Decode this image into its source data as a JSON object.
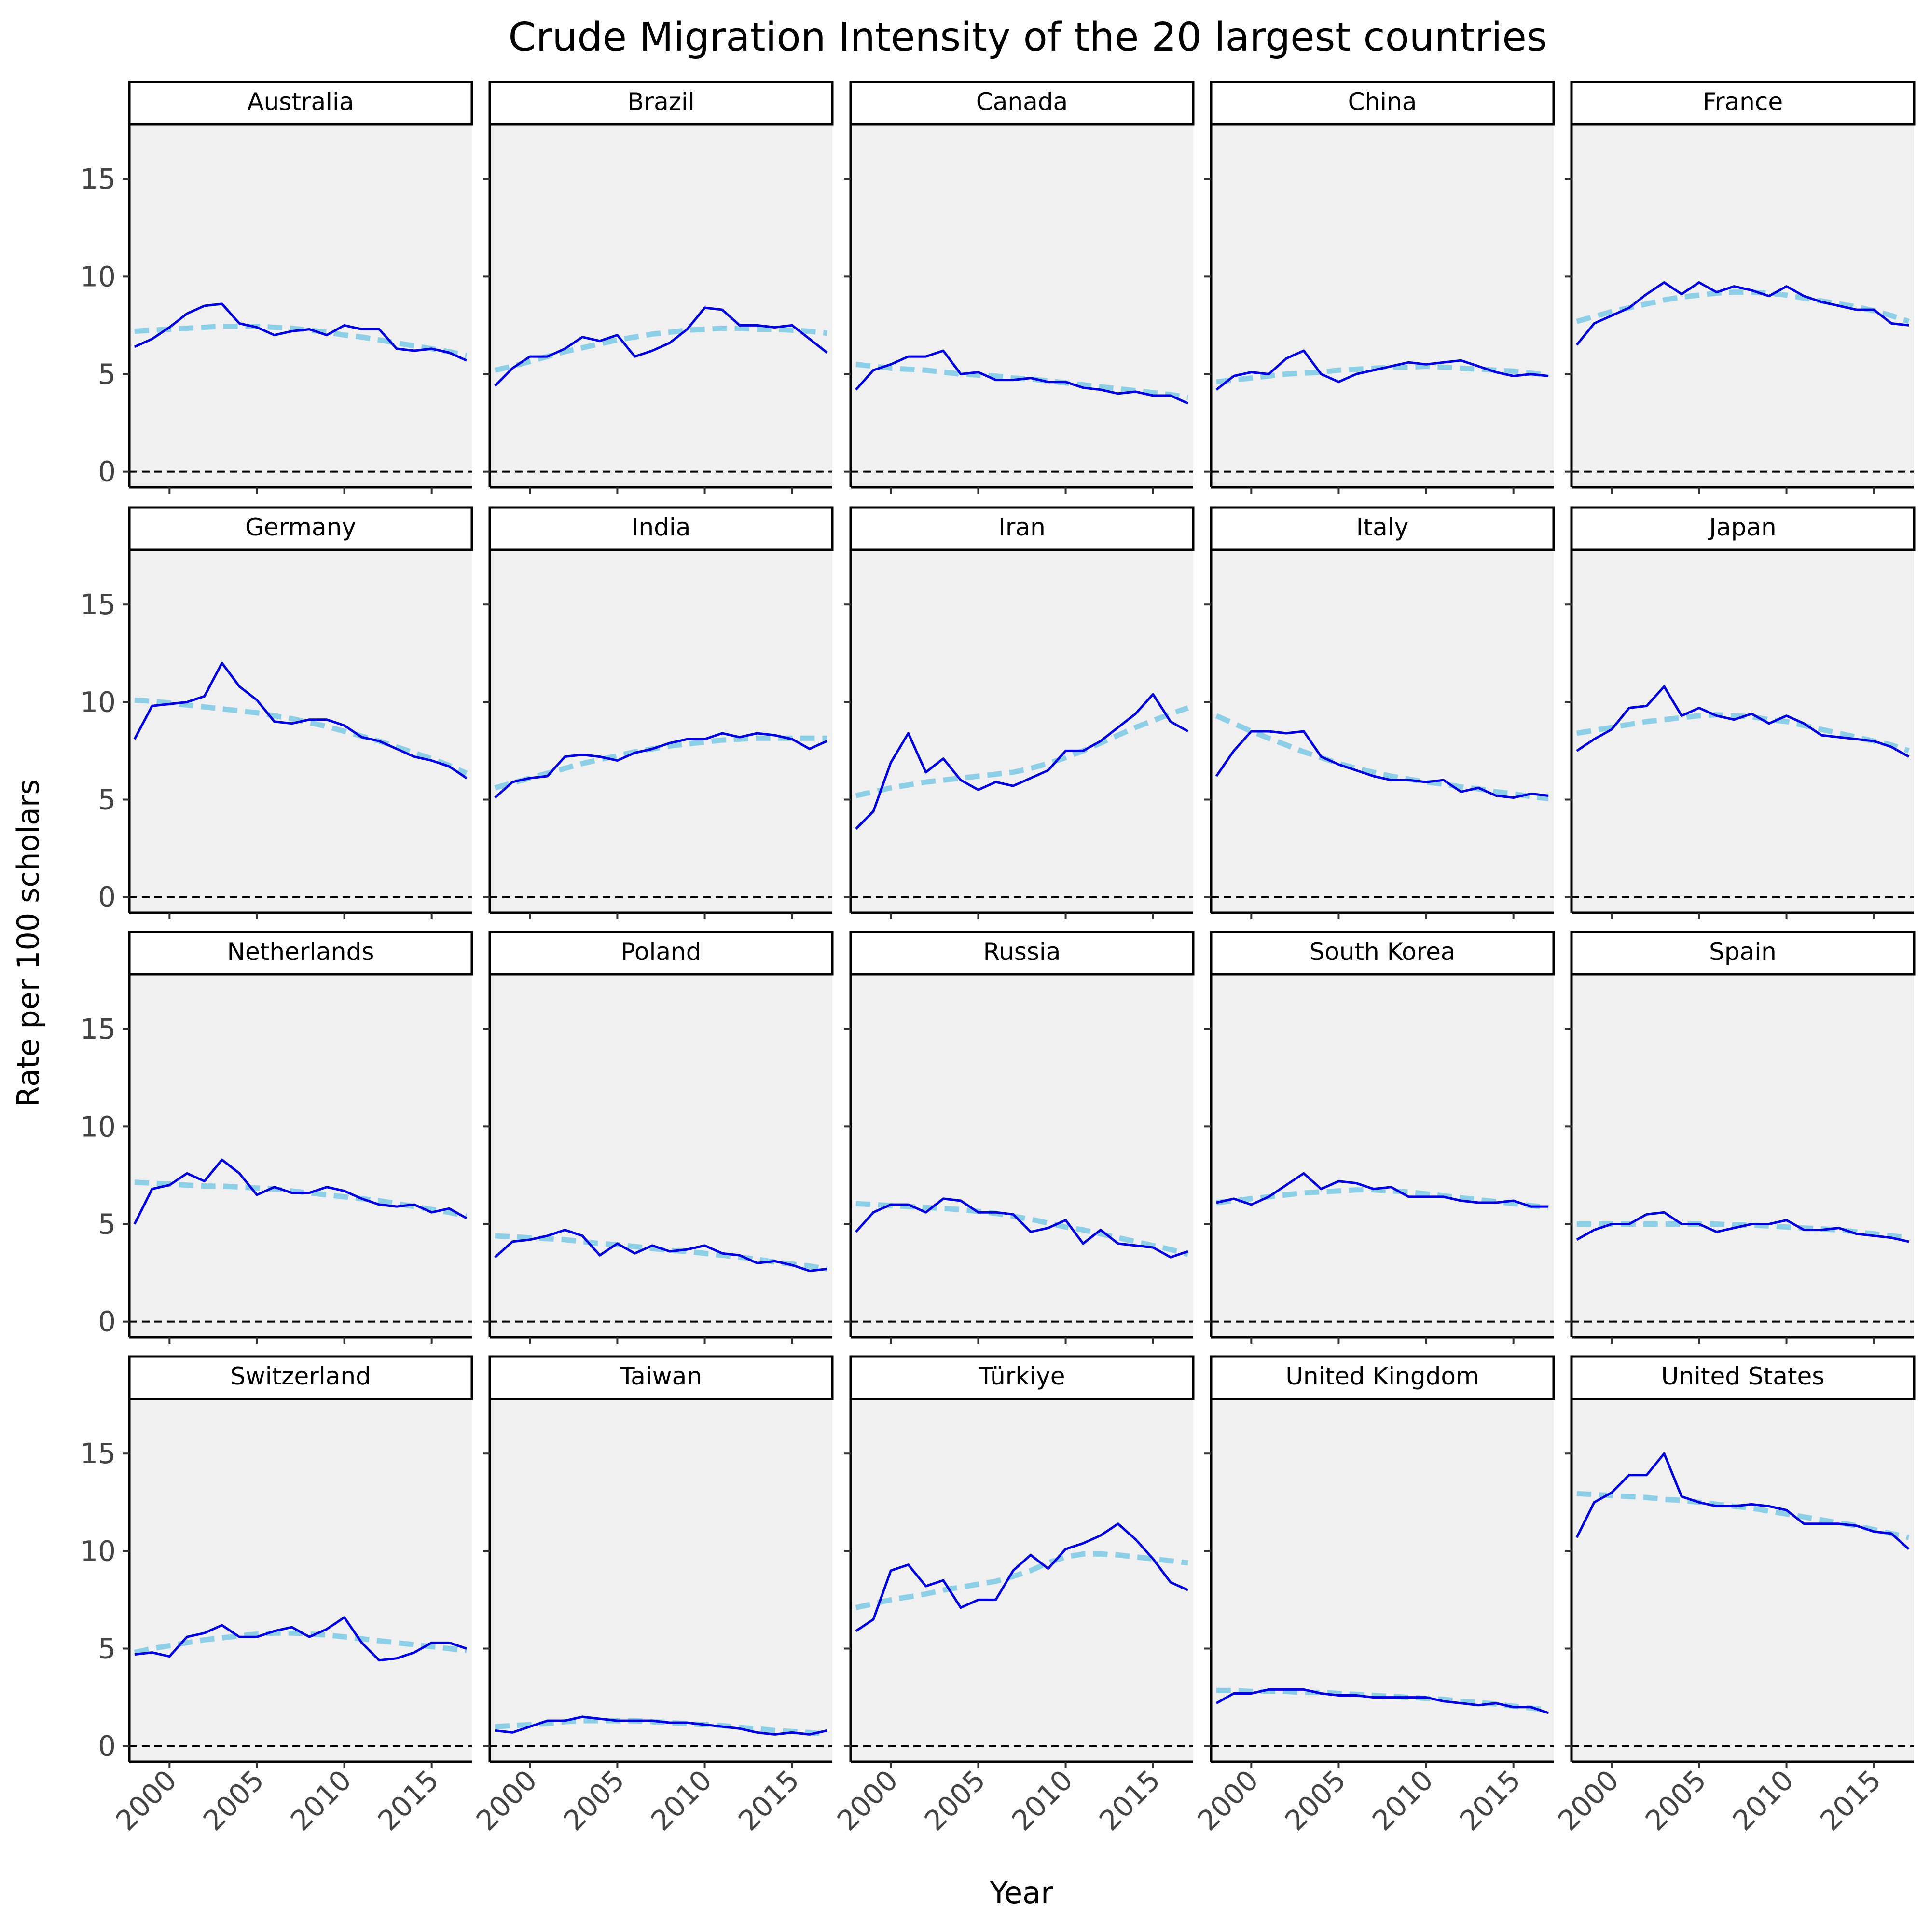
{
  "chart_data": {
    "type": "line",
    "title": "Crude Migration Intensity of the 20 largest countries",
    "xlabel": "Year",
    "ylabel": "Rate per 100 scholars",
    "x": [
      1998,
      1999,
      2000,
      2001,
      2002,
      2003,
      2004,
      2005,
      2006,
      2007,
      2008,
      2009,
      2010,
      2011,
      2012,
      2013,
      2014,
      2015,
      2016,
      2017
    ],
    "xlim": [
      1997.7,
      2017.3
    ],
    "ylim": [
      -0.8,
      17.8
    ],
    "xticks": [
      2000,
      2005,
      2010,
      2015
    ],
    "yticks": [
      0,
      5,
      10,
      15
    ],
    "grid": false,
    "reference_line": 0,
    "colors": {
      "observed": "#0000dd",
      "trend": "#8ecfe8",
      "panel_background": "#f0f0f0",
      "reference": "#000000"
    },
    "panels": [
      {
        "name": "Australia",
        "values": [
          6.4,
          6.8,
          7.4,
          8.1,
          8.5,
          8.6,
          7.6,
          7.4,
          7.0,
          7.2,
          7.3,
          7.0,
          7.5,
          7.3,
          7.3,
          6.3,
          6.2,
          6.3,
          6.1,
          5.7
        ],
        "trend": [
          7.2,
          7.25,
          7.3,
          7.35,
          7.4,
          7.45,
          7.45,
          7.45,
          7.4,
          7.35,
          7.25,
          7.15,
          7.0,
          6.9,
          6.75,
          6.6,
          6.45,
          6.3,
          6.15,
          5.95
        ]
      },
      {
        "name": "Brazil",
        "values": [
          4.4,
          5.3,
          5.9,
          5.9,
          6.3,
          6.9,
          6.7,
          7.0,
          5.9,
          6.2,
          6.6,
          7.3,
          8.4,
          8.3,
          7.5,
          7.5,
          7.4,
          7.5,
          6.8,
          6.1
        ],
        "trend": [
          5.2,
          5.4,
          5.65,
          5.9,
          6.15,
          6.35,
          6.55,
          6.75,
          6.9,
          7.05,
          7.15,
          7.25,
          7.3,
          7.35,
          7.35,
          7.3,
          7.3,
          7.25,
          7.2,
          7.1
        ]
      },
      {
        "name": "Canada",
        "values": [
          4.2,
          5.2,
          5.5,
          5.9,
          5.9,
          6.2,
          5.0,
          5.1,
          4.7,
          4.7,
          4.8,
          4.6,
          4.6,
          4.3,
          4.2,
          4.0,
          4.1,
          3.9,
          3.9,
          3.5
        ],
        "trend": [
          5.5,
          5.4,
          5.3,
          5.25,
          5.2,
          5.1,
          5.0,
          4.95,
          4.9,
          4.8,
          4.75,
          4.65,
          4.55,
          4.45,
          4.35,
          4.25,
          4.15,
          4.05,
          3.95,
          3.8
        ]
      },
      {
        "name": "China",
        "values": [
          4.2,
          4.9,
          5.1,
          5.0,
          5.8,
          6.2,
          5.0,
          4.6,
          5.0,
          5.2,
          5.4,
          5.6,
          5.5,
          5.6,
          5.7,
          5.4,
          5.1,
          4.9,
          5.0,
          4.9
        ],
        "trend": [
          4.6,
          4.7,
          4.8,
          4.9,
          5.0,
          5.05,
          5.1,
          5.2,
          5.25,
          5.3,
          5.35,
          5.35,
          5.4,
          5.35,
          5.3,
          5.25,
          5.2,
          5.15,
          5.05,
          4.95
        ]
      },
      {
        "name": "France",
        "values": [
          6.5,
          7.6,
          8.0,
          8.4,
          9.1,
          9.7,
          9.1,
          9.7,
          9.2,
          9.5,
          9.3,
          9.0,
          9.5,
          9.0,
          8.7,
          8.5,
          8.3,
          8.3,
          7.6,
          7.5
        ],
        "trend": [
          7.7,
          7.95,
          8.2,
          8.4,
          8.6,
          8.8,
          8.95,
          9.05,
          9.15,
          9.2,
          9.2,
          9.15,
          9.05,
          8.9,
          8.75,
          8.6,
          8.45,
          8.25,
          8.0,
          7.7
        ]
      },
      {
        "name": "Germany",
        "values": [
          8.1,
          9.8,
          9.9,
          10.0,
          10.3,
          12.0,
          10.8,
          10.1,
          9.0,
          8.9,
          9.1,
          9.1,
          8.8,
          8.2,
          8.0,
          7.6,
          7.2,
          7.0,
          6.7,
          6.1
        ],
        "trend": [
          10.1,
          10.05,
          9.95,
          9.85,
          9.75,
          9.65,
          9.55,
          9.45,
          9.3,
          9.15,
          8.95,
          8.75,
          8.5,
          8.25,
          8.0,
          7.7,
          7.4,
          7.1,
          6.75,
          6.35
        ]
      },
      {
        "name": "India",
        "values": [
          5.1,
          5.9,
          6.1,
          6.2,
          7.2,
          7.3,
          7.2,
          7.0,
          7.4,
          7.6,
          7.9,
          8.1,
          8.1,
          8.4,
          8.2,
          8.4,
          8.3,
          8.1,
          7.6,
          8.0
        ],
        "trend": [
          5.6,
          5.85,
          6.1,
          6.35,
          6.6,
          6.85,
          7.05,
          7.25,
          7.45,
          7.6,
          7.75,
          7.85,
          7.95,
          8.05,
          8.1,
          8.15,
          8.15,
          8.15,
          8.15,
          8.15
        ]
      },
      {
        "name": "Iran",
        "values": [
          3.5,
          4.4,
          6.9,
          8.4,
          6.4,
          7.1,
          6.0,
          5.5,
          5.9,
          5.7,
          6.1,
          6.5,
          7.5,
          7.5,
          8.0,
          8.7,
          9.4,
          10.4,
          9.0,
          8.5
        ],
        "trend": [
          5.2,
          5.4,
          5.6,
          5.75,
          5.9,
          6.0,
          6.1,
          6.2,
          6.3,
          6.4,
          6.6,
          6.85,
          7.15,
          7.5,
          7.9,
          8.3,
          8.7,
          9.05,
          9.4,
          9.7
        ]
      },
      {
        "name": "Italy",
        "values": [
          6.2,
          7.5,
          8.5,
          8.5,
          8.4,
          8.5,
          7.2,
          6.8,
          6.5,
          6.2,
          6.0,
          6.0,
          5.9,
          6.0,
          5.4,
          5.6,
          5.2,
          5.1,
          5.3,
          5.2
        ],
        "trend": [
          9.3,
          8.9,
          8.5,
          8.15,
          7.8,
          7.45,
          7.15,
          6.85,
          6.6,
          6.4,
          6.2,
          6.05,
          5.9,
          5.8,
          5.65,
          5.55,
          5.4,
          5.3,
          5.15,
          5.05
        ]
      },
      {
        "name": "Japan",
        "values": [
          7.5,
          8.1,
          8.6,
          9.7,
          9.8,
          10.8,
          9.3,
          9.7,
          9.3,
          9.1,
          9.4,
          8.9,
          9.3,
          8.9,
          8.3,
          8.2,
          8.1,
          8.0,
          7.7,
          7.2
        ],
        "trend": [
          8.4,
          8.55,
          8.7,
          8.85,
          9.0,
          9.1,
          9.2,
          9.3,
          9.35,
          9.3,
          9.25,
          9.1,
          9.0,
          8.8,
          8.6,
          8.4,
          8.2,
          8.0,
          7.8,
          7.5
        ]
      },
      {
        "name": "Netherlands",
        "values": [
          5.0,
          6.8,
          7.0,
          7.6,
          7.2,
          8.3,
          7.6,
          6.5,
          6.9,
          6.6,
          6.6,
          6.9,
          6.7,
          6.3,
          6.0,
          5.9,
          6.0,
          5.6,
          5.8,
          5.3
        ],
        "trend": [
          7.15,
          7.1,
          7.05,
          7.0,
          6.95,
          6.95,
          6.9,
          6.85,
          6.8,
          6.7,
          6.6,
          6.5,
          6.4,
          6.3,
          6.2,
          6.05,
          5.9,
          5.75,
          5.6,
          5.4
        ]
      },
      {
        "name": "Poland",
        "values": [
          3.3,
          4.1,
          4.2,
          4.4,
          4.7,
          4.4,
          3.4,
          4.0,
          3.5,
          3.9,
          3.6,
          3.7,
          3.9,
          3.5,
          3.4,
          3.0,
          3.1,
          2.9,
          2.6,
          2.7
        ],
        "trend": [
          4.4,
          4.35,
          4.3,
          4.25,
          4.2,
          4.1,
          4.0,
          3.95,
          3.85,
          3.75,
          3.65,
          3.6,
          3.5,
          3.4,
          3.3,
          3.2,
          3.05,
          2.95,
          2.85,
          2.7
        ]
      },
      {
        "name": "Russia",
        "values": [
          4.6,
          5.6,
          6.0,
          6.0,
          5.6,
          6.3,
          6.2,
          5.6,
          5.6,
          5.5,
          4.6,
          4.8,
          5.2,
          4.0,
          4.7,
          4.0,
          3.9,
          3.8,
          3.3,
          3.6
        ],
        "trend": [
          6.05,
          6.0,
          5.95,
          5.9,
          5.85,
          5.8,
          5.75,
          5.65,
          5.55,
          5.4,
          5.25,
          5.05,
          4.85,
          4.7,
          4.5,
          4.3,
          4.1,
          3.9,
          3.7,
          3.45
        ]
      },
      {
        "name": "South Korea",
        "values": [
          6.1,
          6.3,
          6.0,
          6.4,
          7.0,
          7.6,
          6.8,
          7.2,
          7.1,
          6.8,
          6.9,
          6.4,
          6.4,
          6.4,
          6.2,
          6.1,
          6.1,
          6.2,
          5.9,
          5.9
        ],
        "trend": [
          6.1,
          6.2,
          6.3,
          6.4,
          6.5,
          6.6,
          6.65,
          6.7,
          6.75,
          6.75,
          6.7,
          6.65,
          6.55,
          6.45,
          6.35,
          6.25,
          6.15,
          6.05,
          5.95,
          5.85
        ]
      },
      {
        "name": "Spain",
        "values": [
          4.2,
          4.7,
          5.0,
          5.0,
          5.5,
          5.6,
          5.0,
          5.0,
          4.6,
          4.8,
          5.0,
          5.0,
          5.2,
          4.7,
          4.7,
          4.8,
          4.5,
          4.4,
          4.3,
          4.1
        ],
        "trend": [
          5.0,
          5.0,
          5.0,
          5.0,
          5.0,
          5.0,
          5.0,
          5.0,
          5.0,
          4.95,
          4.95,
          4.9,
          4.85,
          4.8,
          4.75,
          4.7,
          4.6,
          4.5,
          4.4,
          4.3
        ]
      },
      {
        "name": "Switzerland",
        "values": [
          4.7,
          4.8,
          4.6,
          5.6,
          5.8,
          6.2,
          5.6,
          5.6,
          5.9,
          6.1,
          5.6,
          6.0,
          6.6,
          5.3,
          4.4,
          4.5,
          4.8,
          5.3,
          5.3,
          5.0
        ],
        "trend": [
          4.8,
          5.0,
          5.15,
          5.3,
          5.45,
          5.55,
          5.65,
          5.75,
          5.8,
          5.8,
          5.75,
          5.7,
          5.6,
          5.5,
          5.4,
          5.3,
          5.2,
          5.1,
          5.0,
          4.9
        ]
      },
      {
        "name": "Taiwan",
        "values": [
          0.8,
          0.7,
          1.0,
          1.3,
          1.3,
          1.5,
          1.4,
          1.3,
          1.3,
          1.3,
          1.2,
          1.2,
          1.1,
          1.0,
          0.9,
          0.7,
          0.6,
          0.7,
          0.6,
          0.8
        ],
        "trend": [
          1.0,
          1.05,
          1.1,
          1.15,
          1.25,
          1.3,
          1.3,
          1.3,
          1.3,
          1.25,
          1.2,
          1.15,
          1.1,
          1.05,
          0.95,
          0.9,
          0.8,
          0.75,
          0.7,
          0.6
        ]
      },
      {
        "name": "Türkiye",
        "values": [
          5.9,
          6.5,
          9.0,
          9.3,
          8.2,
          8.5,
          7.1,
          7.5,
          7.5,
          9.0,
          9.8,
          9.1,
          10.1,
          10.4,
          10.8,
          11.4,
          10.6,
          9.6,
          8.4,
          8.0
        ],
        "trend": [
          7.1,
          7.3,
          7.5,
          7.65,
          7.8,
          8.0,
          8.15,
          8.3,
          8.45,
          8.7,
          9.0,
          9.4,
          9.7,
          9.85,
          9.85,
          9.8,
          9.7,
          9.6,
          9.5,
          9.4
        ]
      },
      {
        "name": "United Kingdom",
        "values": [
          2.2,
          2.7,
          2.7,
          2.9,
          2.9,
          2.9,
          2.7,
          2.6,
          2.6,
          2.5,
          2.5,
          2.5,
          2.5,
          2.3,
          2.2,
          2.1,
          2.2,
          2.0,
          2.0,
          1.7
        ],
        "trend": [
          2.85,
          2.85,
          2.8,
          2.8,
          2.8,
          2.75,
          2.75,
          2.7,
          2.65,
          2.6,
          2.55,
          2.5,
          2.45,
          2.4,
          2.3,
          2.25,
          2.15,
          2.05,
          1.95,
          1.85
        ]
      },
      {
        "name": "United States",
        "values": [
          10.7,
          12.5,
          13.0,
          13.9,
          13.9,
          15.0,
          12.8,
          12.5,
          12.3,
          12.3,
          12.4,
          12.3,
          12.1,
          11.4,
          11.4,
          11.4,
          11.3,
          11.0,
          10.9,
          10.1
        ],
        "trend": [
          12.95,
          12.9,
          12.85,
          12.8,
          12.75,
          12.65,
          12.6,
          12.5,
          12.4,
          12.3,
          12.2,
          12.05,
          11.9,
          11.75,
          11.6,
          11.45,
          11.3,
          11.1,
          10.9,
          10.7
        ]
      }
    ]
  }
}
